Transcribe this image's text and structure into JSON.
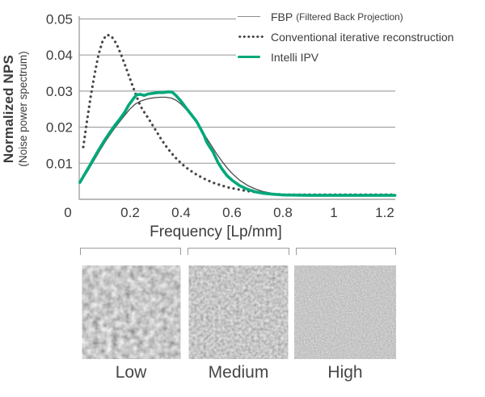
{
  "figure": {
    "y_axis_title": "Normalized NPS",
    "y_axis_subtitle": "(Noise power spectrum)",
    "x_axis_title": "Frequency [Lp/mm]",
    "text_color": "#3c3c3c",
    "grid_color": "#a3a3a3",
    "accent_green": "#00a87a",
    "legend": {
      "items": [
        {
          "label": "FBP",
          "sublabel": "(Filtered Back Projection)",
          "swatch": "thin-gray-line",
          "color": "#8c8c8c"
        },
        {
          "label": "Conventional iterative reconstruction",
          "sublabel": "",
          "swatch": "dotted-dark-line",
          "color": "#474747"
        },
        {
          "label": "Intelli IPV",
          "sublabel": "",
          "swatch": "thick-green-line",
          "color": "#00a87a"
        }
      ]
    }
  },
  "chart_data": {
    "type": "line",
    "title": "",
    "xlabel": "Frequency [Lp/mm]",
    "ylabel": "Normalized NPS (Noise power spectrum)",
    "xlim": [
      0,
      1.24
    ],
    "ylim": [
      0,
      0.05
    ],
    "grid": true,
    "legend_position": "top-right",
    "x_ticks": [
      0,
      0.2,
      0.4,
      0.6,
      0.8,
      1,
      1.2
    ],
    "x_tick_labels": [
      "0",
      "0.2",
      "0.4",
      "0.6",
      "0.8",
      "1",
      "1.2"
    ],
    "y_ticks": [
      0.01,
      0.02,
      0.03,
      0.04,
      0.05
    ],
    "y_tick_labels": [
      "0.01",
      "0.02",
      "0.03",
      "0.04",
      "0.05"
    ],
    "series": [
      {
        "name": "FBP (Filtered Back Projection)",
        "style": "line",
        "color": "#4a4a4a",
        "width": 1.3,
        "points": [
          [
            0.003,
            0.0044
          ],
          [
            0.02,
            0.0063
          ],
          [
            0.04,
            0.0086
          ],
          [
            0.06,
            0.011
          ],
          [
            0.08,
            0.0134
          ],
          [
            0.1,
            0.0157
          ],
          [
            0.12,
            0.0178
          ],
          [
            0.14,
            0.0198
          ],
          [
            0.16,
            0.0216
          ],
          [
            0.18,
            0.0234
          ],
          [
            0.2,
            0.0251
          ],
          [
            0.22,
            0.0264
          ],
          [
            0.24,
            0.0272
          ],
          [
            0.26,
            0.0277
          ],
          [
            0.28,
            0.028
          ],
          [
            0.3,
            0.0282
          ],
          [
            0.32,
            0.0283
          ],
          [
            0.34,
            0.0283
          ],
          [
            0.36,
            0.0281
          ],
          [
            0.38,
            0.0275
          ],
          [
            0.4,
            0.0264
          ],
          [
            0.42,
            0.0249
          ],
          [
            0.44,
            0.0232
          ],
          [
            0.46,
            0.0213
          ],
          [
            0.48,
            0.0192
          ],
          [
            0.5,
            0.017
          ],
          [
            0.52,
            0.0148
          ],
          [
            0.54,
            0.0126
          ],
          [
            0.56,
            0.0106
          ],
          [
            0.58,
            0.0088
          ],
          [
            0.6,
            0.0072
          ],
          [
            0.63,
            0.0053
          ],
          [
            0.66,
            0.0039
          ],
          [
            0.69,
            0.0029
          ],
          [
            0.72,
            0.0022
          ],
          [
            0.76,
            0.0016
          ],
          [
            0.8,
            0.0013
          ],
          [
            0.86,
            0.0011
          ],
          [
            0.95,
            0.001
          ],
          [
            1.05,
            0.001
          ],
          [
            1.15,
            0.001
          ],
          [
            1.24,
            0.001
          ]
        ]
      },
      {
        "name": "Conventional iterative reconstruction",
        "style": "dotted",
        "color": "#474747",
        "width": 3.2,
        "points": [
          [
            0.016,
            0.0145
          ],
          [
            0.03,
            0.0215
          ],
          [
            0.045,
            0.0285
          ],
          [
            0.06,
            0.0345
          ],
          [
            0.075,
            0.0398
          ],
          [
            0.09,
            0.0435
          ],
          [
            0.105,
            0.0455
          ],
          [
            0.12,
            0.0455
          ],
          [
            0.135,
            0.0445
          ],
          [
            0.15,
            0.0425
          ],
          [
            0.165,
            0.04
          ],
          [
            0.18,
            0.0372
          ],
          [
            0.195,
            0.0343
          ],
          [
            0.21,
            0.0314
          ],
          [
            0.225,
            0.0286
          ],
          [
            0.24,
            0.0259
          ],
          [
            0.255,
            0.0242
          ],
          [
            0.27,
            0.0226
          ],
          [
            0.285,
            0.0209
          ],
          [
            0.3,
            0.0192
          ],
          [
            0.32,
            0.0169
          ],
          [
            0.34,
            0.0148
          ],
          [
            0.36,
            0.013
          ],
          [
            0.38,
            0.0114
          ],
          [
            0.4,
            0.01
          ],
          [
            0.42,
            0.0088
          ],
          [
            0.44,
            0.0078
          ],
          [
            0.46,
            0.0069
          ],
          [
            0.48,
            0.0061
          ],
          [
            0.5,
            0.0054
          ],
          [
            0.53,
            0.0045
          ],
          [
            0.56,
            0.0038
          ],
          [
            0.59,
            0.0032
          ],
          [
            0.62,
            0.0028
          ],
          [
            0.65,
            0.0024
          ],
          [
            0.68,
            0.0021
          ],
          [
            0.72,
            0.0018
          ],
          [
            0.76,
            0.0015
          ],
          [
            0.8,
            0.0013
          ],
          [
            0.85,
            0.0013
          ],
          [
            0.95,
            0.0013
          ],
          [
            1.05,
            0.0013
          ],
          [
            1.15,
            0.0013
          ],
          [
            1.24,
            0.0013
          ]
        ]
      },
      {
        "name": "Intelli IPV",
        "style": "line",
        "color": "#00a87a",
        "width": 3.6,
        "points": [
          [
            0.003,
            0.0047
          ],
          [
            0.02,
            0.0068
          ],
          [
            0.04,
            0.0092
          ],
          [
            0.06,
            0.0117
          ],
          [
            0.08,
            0.0141
          ],
          [
            0.1,
            0.0164
          ],
          [
            0.12,
            0.0185
          ],
          [
            0.14,
            0.0205
          ],
          [
            0.16,
            0.0223
          ],
          [
            0.18,
            0.0243
          ],
          [
            0.195,
            0.0262
          ],
          [
            0.21,
            0.0276
          ],
          [
            0.225,
            0.029
          ],
          [
            0.24,
            0.0291
          ],
          [
            0.255,
            0.0288
          ],
          [
            0.27,
            0.0292
          ],
          [
            0.29,
            0.0294
          ],
          [
            0.31,
            0.0296
          ],
          [
            0.33,
            0.0296
          ],
          [
            0.35,
            0.0298
          ],
          [
            0.365,
            0.0297
          ],
          [
            0.38,
            0.0288
          ],
          [
            0.4,
            0.0272
          ],
          [
            0.42,
            0.0253
          ],
          [
            0.44,
            0.0235
          ],
          [
            0.46,
            0.0217
          ],
          [
            0.475,
            0.0198
          ],
          [
            0.49,
            0.0178
          ],
          [
            0.5,
            0.016
          ],
          [
            0.51,
            0.0148
          ],
          [
            0.525,
            0.0132
          ],
          [
            0.545,
            0.0102
          ],
          [
            0.56,
            0.0085
          ],
          [
            0.58,
            0.0066
          ],
          [
            0.6,
            0.0053
          ],
          [
            0.63,
            0.0038
          ],
          [
            0.66,
            0.0028
          ],
          [
            0.69,
            0.0021
          ],
          [
            0.72,
            0.0017
          ],
          [
            0.76,
            0.0014
          ],
          [
            0.8,
            0.0012
          ],
          [
            0.9,
            0.0011
          ],
          [
            1.0,
            0.0011
          ],
          [
            1.12,
            0.0011
          ],
          [
            1.24,
            0.0011
          ]
        ]
      }
    ]
  },
  "frequency_bands": {
    "items": [
      {
        "label": "Low",
        "texture": "coarse-noise"
      },
      {
        "label": "Medium",
        "texture": "medium-noise"
      },
      {
        "label": "High",
        "texture": "fine-noise"
      }
    ]
  }
}
